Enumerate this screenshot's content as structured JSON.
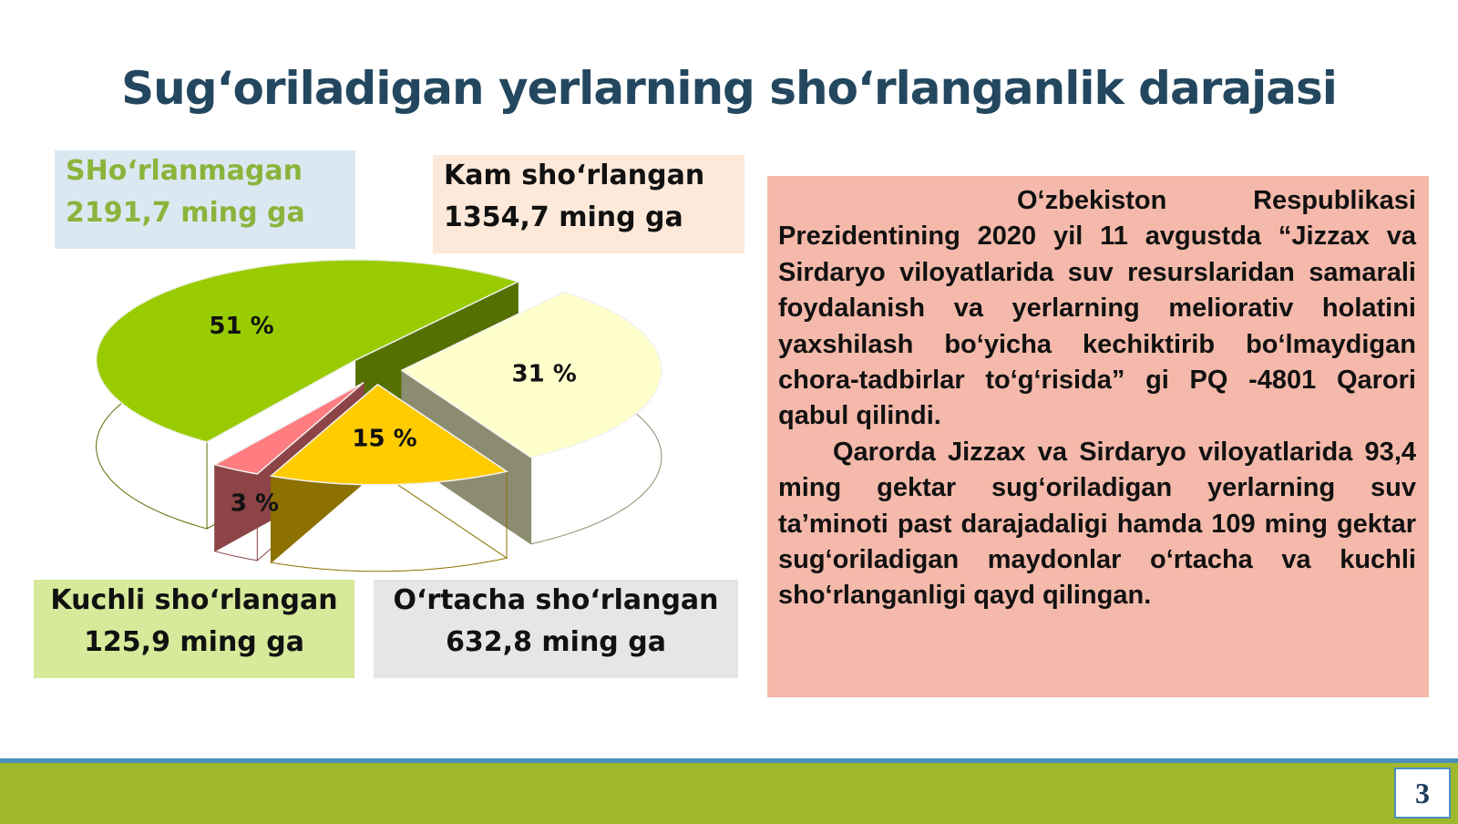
{
  "chart_data": {
    "type": "pie",
    "title": "Sug‘oriladigan yerlarning sho‘rlanganlik darajasi",
    "categories": [
      "SHo‘rlanmagan",
      "Kam sho‘rlangan",
      "O‘rtacha sho‘rlangan",
      "Kuchli sho‘rlangan"
    ],
    "areas": [
      "2191,7 ming ga",
      "1354,7 ming ga",
      "632,8 ming ga",
      "125,9 ming ga"
    ],
    "values": [
      51,
      31,
      15,
      3
    ],
    "value_labels": [
      "51 %",
      "31 %",
      "15 %",
      "3 %"
    ],
    "colors": [
      "#99cc00",
      "#ffffcc",
      "#ffcc00",
      "#ff7c80"
    ]
  },
  "text_box": {
    "paragraphs": [
      "O‘zbekiston Respublikasi Prezidentining 2020 yil 11 avgustda “Jizzax va Sirdaryo viloyatlarida suv resurslaridan samarali foydalanish va yerlarning meliorativ holatini yaxshilash bo‘yicha kechiktirib bo‘lmaydigan chora-tadbirlar to‘g‘risida” gi PQ -4801 Qarori qabul qilindi.",
      "Qarorda Jizzax va Sirdaryo viloyatlarida 93,4 ming gektar sug‘oriladigan yerlarning suv ta’minoti past darajadaligi hamda 109 ming gektar sug‘oriladigan maydonlar o‘rtacha va kuchli sho‘rlanganligi qayd qilingan."
    ]
  },
  "page_number": "3"
}
